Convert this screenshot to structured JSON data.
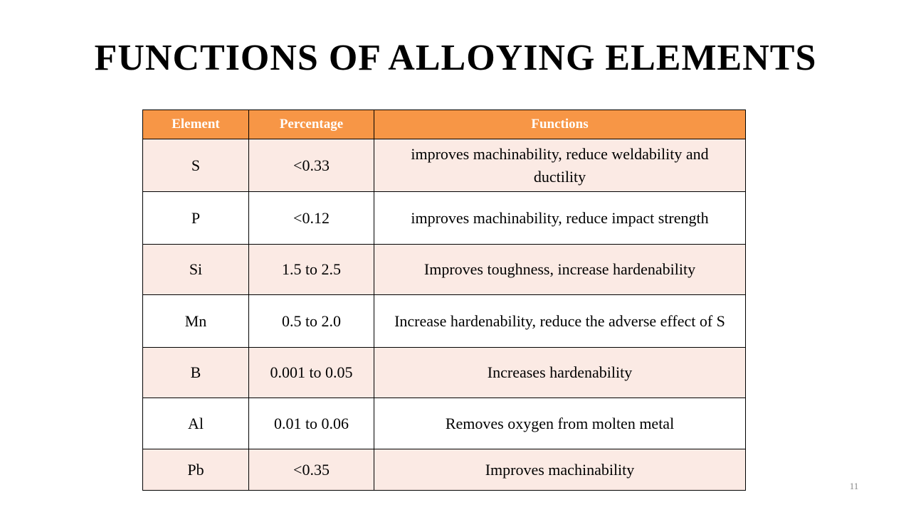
{
  "header": {
    "title": "FUNCTIONS OF ALLOYING ELEMENTS"
  },
  "table": {
    "columns": [
      "Element",
      "Percentage",
      "Functions"
    ],
    "rows": [
      [
        "S",
        "<0.33",
        "improves machinability, reduce weldability and ductility"
      ],
      [
        "P",
        "<0.12",
        "improves machinability, reduce impact strength"
      ],
      [
        "Si",
        "1.5 to 2.5",
        "Improves toughness, increase hardenability"
      ],
      [
        "Mn",
        "0.5 to 2.0",
        "Increase hardenability, reduce the adverse effect of S"
      ],
      [
        "B",
        "0.001 to 0.05",
        "Increases hardenability"
      ],
      [
        "Al",
        "0.01 to 0.06",
        "Removes oxygen from molten metal"
      ],
      [
        "Pb",
        "<0.35",
        "Improves machinability"
      ]
    ]
  },
  "footer": {
    "page_number": "11"
  }
}
